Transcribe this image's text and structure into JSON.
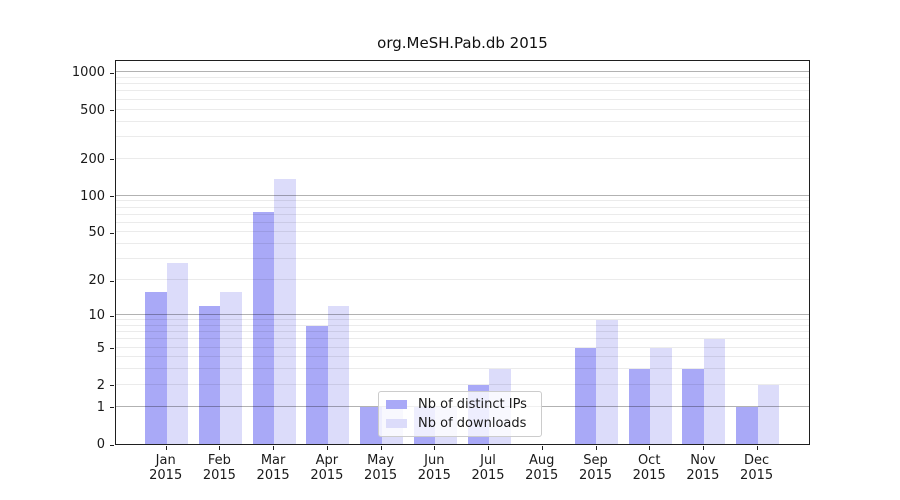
{
  "chart_data": {
    "type": "bar",
    "title": "org.MeSH.Pab.db 2015",
    "y_scale": "log1p",
    "grid": "on, horizontal, major lines at powers of 10, minor log subdivisions, drawn above bars",
    "categories": [
      "Jan",
      "Feb",
      "Mar",
      "Apr",
      "May",
      "Jun",
      "Jul",
      "Aug",
      "Sep",
      "Oct",
      "Nov",
      "Dec"
    ],
    "year": "2015",
    "series": [
      {
        "name": "Nb of distinct IPs",
        "color": "#a9a9f7",
        "values": [
          16,
          12,
          74,
          8,
          1,
          1,
          2,
          0,
          5,
          3,
          3,
          1
        ]
      },
      {
        "name": "Nb of downloads",
        "color": "#dcdcfa",
        "values": [
          28,
          16,
          137,
          12,
          1,
          1,
          3,
          0,
          9,
          5,
          6,
          2
        ]
      }
    ],
    "y_ticks": [
      0,
      1,
      2,
      5,
      10,
      20,
      50,
      100,
      200,
      500,
      1000
    ],
    "major_gridlines": [
      1,
      10,
      100,
      1000
    ],
    "minor_gridlines": [
      2,
      3,
      4,
      5,
      6,
      7,
      8,
      9,
      20,
      30,
      40,
      50,
      60,
      70,
      80,
      90,
      200,
      300,
      400,
      500,
      600,
      700,
      800,
      900
    ],
    "ylim": [
      0,
      1280
    ],
    "legend": {
      "position": "inside lower-center, overlapping May-Aug bars",
      "items": [
        {
          "label": "Nb of distinct IPs"
        },
        {
          "label": "Nb of downloads"
        }
      ]
    }
  }
}
